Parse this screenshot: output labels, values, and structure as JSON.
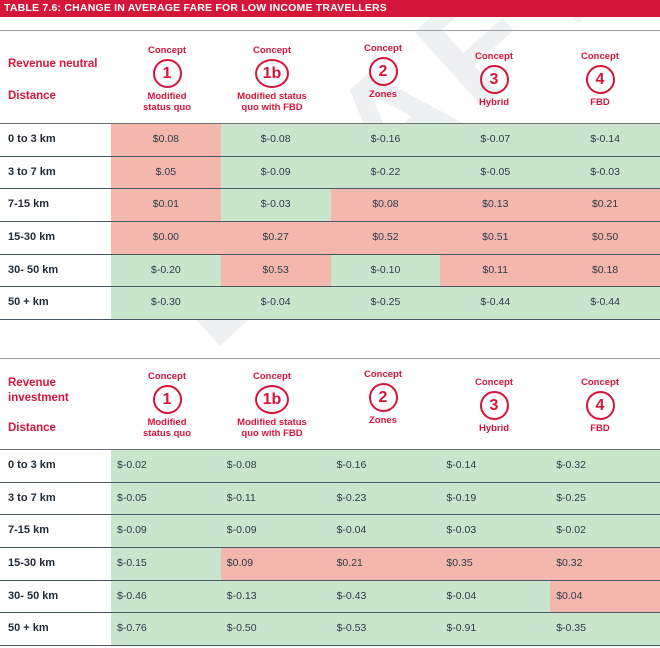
{
  "title": "TABLE 7.6: CHANGE IN AVERAGE FARE FOR LOW INCOME TRAVELLERS",
  "watermark": "DRAFT",
  "concepts": [
    {
      "kw": "Concept",
      "num": "1",
      "sub1": "Modified",
      "sub2": "status quo"
    },
    {
      "kw": "Concept",
      "num": "1b",
      "sub1": "Modified status",
      "sub2": "quo with FBD"
    },
    {
      "kw": "Concept",
      "num": "2",
      "sub1": "Zones",
      "sub2": ""
    },
    {
      "kw": "Concept",
      "num": "3",
      "sub1": "Hybrid",
      "sub2": ""
    },
    {
      "kw": "Concept",
      "num": "4",
      "sub1": "FBD",
      "sub2": ""
    }
  ],
  "table1": {
    "heading1": "Revenue neutral",
    "heading2": "",
    "distance_label": "Distance",
    "rows": [
      {
        "label": "0 to 3 km",
        "values": [
          "$0.08",
          "$-0.08",
          "$-0.16",
          "$-0.07",
          "$-0.14"
        ],
        "colors": [
          "r",
          "g",
          "g",
          "g",
          "g"
        ]
      },
      {
        "label": "3 to 7 km",
        "values": [
          "$.05",
          "$-0.09",
          "$-0.22",
          "$-0.05",
          "$-0.03"
        ],
        "colors": [
          "r",
          "g",
          "g",
          "g",
          "g"
        ]
      },
      {
        "label": "7-15 km",
        "values": [
          "$0.01",
          "$-0.03",
          "$0.08",
          "$0.13",
          "$0.21"
        ],
        "colors": [
          "r",
          "g",
          "r",
          "r",
          "r"
        ]
      },
      {
        "label": "15-30 km",
        "values": [
          "$0.00",
          "$0.27",
          "$0.52",
          "$0.51",
          "$0.50"
        ],
        "colors": [
          "r",
          "r",
          "r",
          "r",
          "r"
        ]
      },
      {
        "label": "30- 50 km",
        "values": [
          "$-0.20",
          "$0.53",
          "$-0.10",
          "$0.11",
          "$0.18"
        ],
        "colors": [
          "g",
          "r",
          "g",
          "r",
          "r"
        ]
      },
      {
        "label": "50 + km",
        "values": [
          "$-0.30",
          "$-0.04",
          "$-0.25",
          "$-0.44",
          "$-0.44"
        ],
        "colors": [
          "g",
          "g",
          "g",
          "g",
          "g"
        ]
      }
    ]
  },
  "table2": {
    "heading1": "Revenue",
    "heading2": "investment",
    "distance_label": "Distance",
    "rows": [
      {
        "label": "0 to 3 km",
        "values": [
          "$-0.02",
          "$-0.08",
          "$-0.16",
          "$-0.14",
          "$-0.32"
        ],
        "colors": [
          "g",
          "g",
          "g",
          "g",
          "g"
        ]
      },
      {
        "label": "3 to 7 km",
        "values": [
          "$-0.05",
          "$-0.11",
          "$-0.23",
          "$-0.19",
          "$-0.25"
        ],
        "colors": [
          "g",
          "g",
          "g",
          "g",
          "g"
        ]
      },
      {
        "label": "7-15 km",
        "values": [
          "$-0.09",
          "$-0.09",
          "$-0.04",
          "$-0.03",
          "$-0.02"
        ],
        "colors": [
          "g",
          "g",
          "g",
          "g",
          "g"
        ]
      },
      {
        "label": "15-30 km",
        "values": [
          "$-0.15",
          "$0.09",
          "$0.21",
          "$0.35",
          "$0.32"
        ],
        "colors": [
          "g",
          "r",
          "r",
          "r",
          "r"
        ]
      },
      {
        "label": "30- 50 km",
        "values": [
          "$-0.46",
          "$-0.13",
          "$-0.43",
          "$-0.04",
          "$0.04"
        ],
        "colors": [
          "g",
          "g",
          "g",
          "g",
          "r"
        ]
      },
      {
        "label": "50 + km",
        "values": [
          "$-0.76",
          "$-0.50",
          "$-0.53",
          "$-0.91",
          "$-0.35"
        ],
        "colors": [
          "g",
          "g",
          "g",
          "g",
          "g"
        ]
      }
    ]
  },
  "colors": {
    "accent": "#d5163b",
    "decrease": "#c9e6cd",
    "increase": "#f4b7ad"
  }
}
